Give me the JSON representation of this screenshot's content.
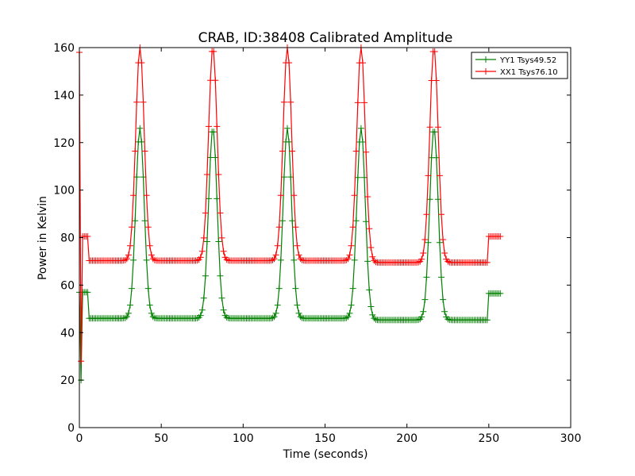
{
  "chart_data": {
    "type": "line",
    "title": "CRAB, ID:38408 Calibrated Amplitude",
    "xlabel": "Time (seconds)",
    "ylabel": "Power in Kelvin",
    "xlim": [
      0,
      300
    ],
    "ylim": [
      0,
      160
    ],
    "x_ticks": [
      0,
      50,
      100,
      150,
      200,
      250,
      300
    ],
    "y_ticks": [
      0,
      20,
      40,
      60,
      80,
      100,
      120,
      140,
      160
    ],
    "grid": false,
    "legend_position": "top-right",
    "marker": "plus",
    "peak_centers": [
      37,
      81.5,
      127,
      172,
      216.5
    ],
    "series": [
      {
        "name": "YY1 Tsys49.52",
        "color": "#008000",
        "profile": {
          "spike_start": 57,
          "spike_min": 20,
          "plateau1": 57,
          "plateau1_x": [
            2,
            6
          ],
          "baseline": 46,
          "baseline2": 45.3,
          "peak": 126,
          "peak_width": 2.6,
          "plateau2": 56.5,
          "plateau2_x": [
            250,
            257
          ]
        }
      },
      {
        "name": "XX1 Tsys76.10",
        "color": "#ff0000",
        "profile": {
          "spike_start": 158,
          "spike_min": 28,
          "plateau1": 80.5,
          "plateau1_x": [
            2,
            6
          ],
          "baseline": 70.3,
          "baseline2": 69.5,
          "peak": 160,
          "peak_width": 2.6,
          "plateau2": 80.5,
          "plateau2_x": [
            250,
            257
          ]
        }
      }
    ]
  }
}
